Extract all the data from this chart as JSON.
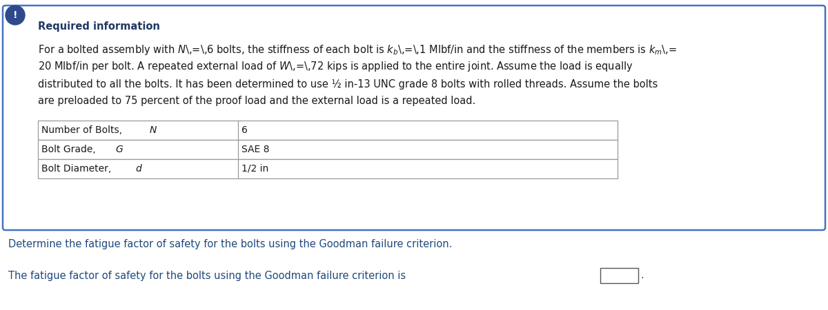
{
  "required_info_title": "Required information",
  "table_rows": [
    [
      "Number of Bolts, ",
      "N",
      "6"
    ],
    [
      "Bolt Grade, ",
      "G",
      "SAE 8"
    ],
    [
      "Bolt Diameter, ",
      "d",
      "1/2 in"
    ]
  ],
  "question_line": "Determine the fatigue factor of safety for the bolts using the Goodman failure criterion.",
  "answer_line_prefix": "The fatigue factor of safety for the bolts using the Goodman failure criterion is",
  "box_border_color": "#4472C4",
  "box_bg_color": "#FFFFFF",
  "exclaim_bg_color": "#2E4A8B",
  "text_color": "#1a1a1a",
  "title_color": "#1F3864",
  "question_color": "#1F497D",
  "table_border_color": "#999999",
  "para_fontsize": 10.5,
  "table_fontsize": 10.0,
  "question_fontsize": 10.5
}
